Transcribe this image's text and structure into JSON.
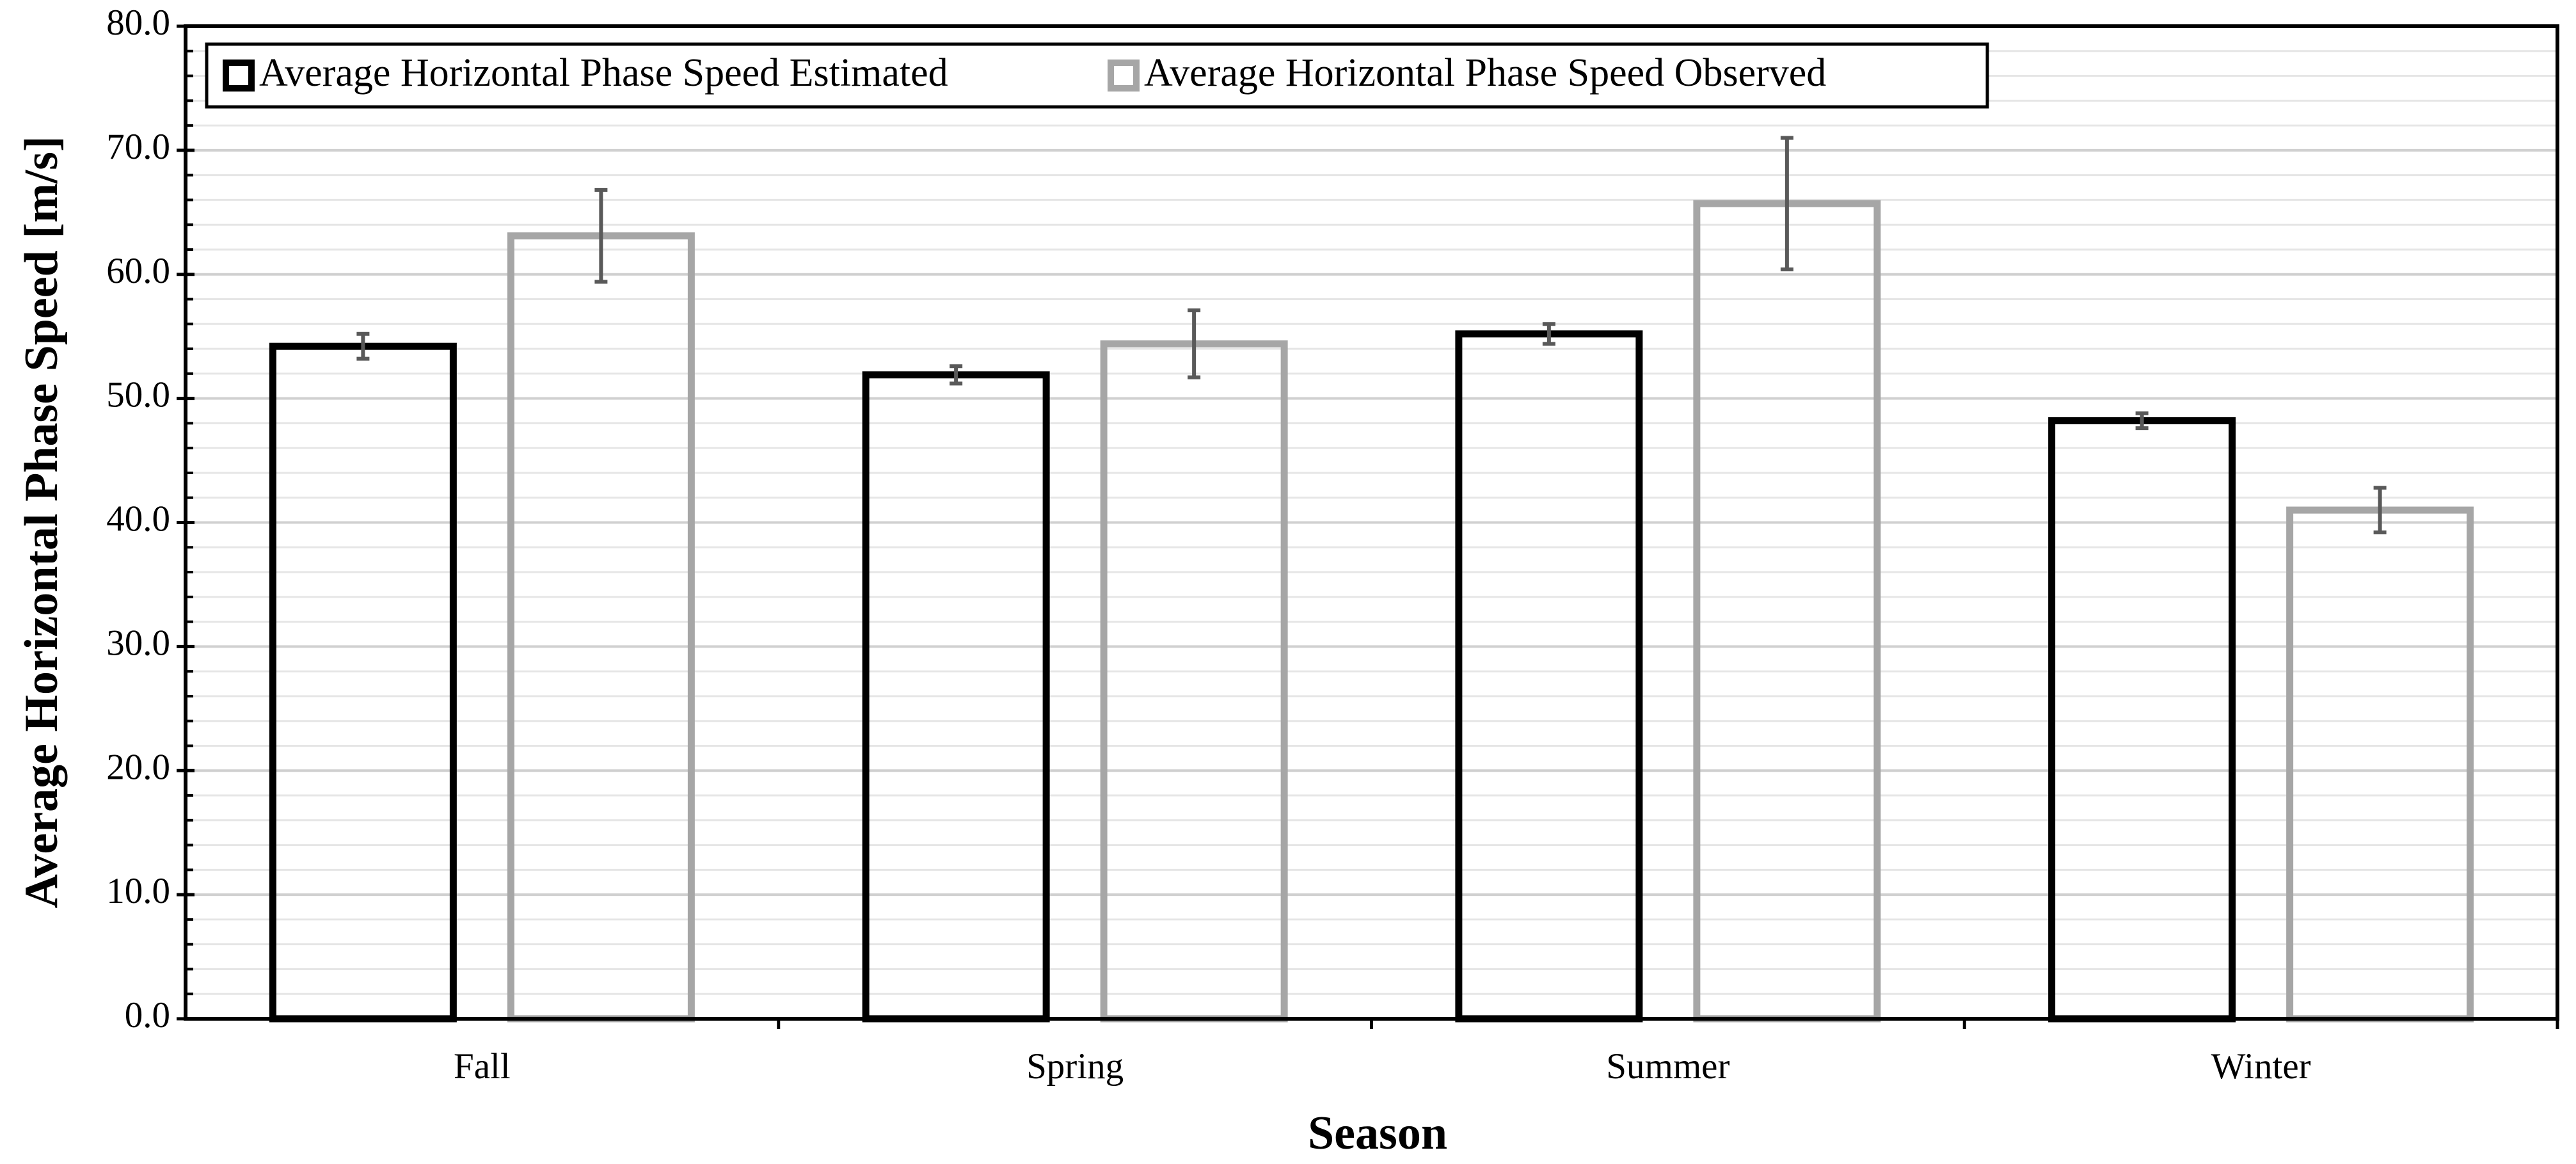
{
  "chart_data": {
    "type": "bar",
    "x_label": "Season",
    "y_label": "Average Horizontal Phase Speed [m/s]",
    "categories": [
      "Fall",
      "Spring",
      "Summer",
      "Winter"
    ],
    "series": [
      {
        "name": "Average Horizontal Phase Speed Estimated",
        "color": "#000000",
        "values": [
          54.2,
          51.9,
          55.2,
          48.2
        ],
        "errors": [
          1.0,
          0.7,
          0.8,
          0.6
        ]
      },
      {
        "name": "Average Horizontal Phase Speed Observed",
        "color": "#a6a6a6",
        "values": [
          63.1,
          54.4,
          65.7,
          41.0
        ],
        "errors": [
          3.7,
          2.7,
          5.3,
          1.8
        ]
      }
    ],
    "ylim": [
      0,
      80
    ],
    "yticks": [
      {
        "value": 0,
        "label": "0.0"
      },
      {
        "value": 10,
        "label": "10.0"
      },
      {
        "value": 20,
        "label": "20.0"
      },
      {
        "value": 30,
        "label": "30.0"
      },
      {
        "value": 40,
        "label": "40.0"
      },
      {
        "value": 50,
        "label": "50.0"
      },
      {
        "value": 60,
        "label": "60.0"
      },
      {
        "value": 70,
        "label": "70.0"
      },
      {
        "value": 80,
        "label": "80.0"
      }
    ],
    "grid": true,
    "legend": "top-left"
  }
}
